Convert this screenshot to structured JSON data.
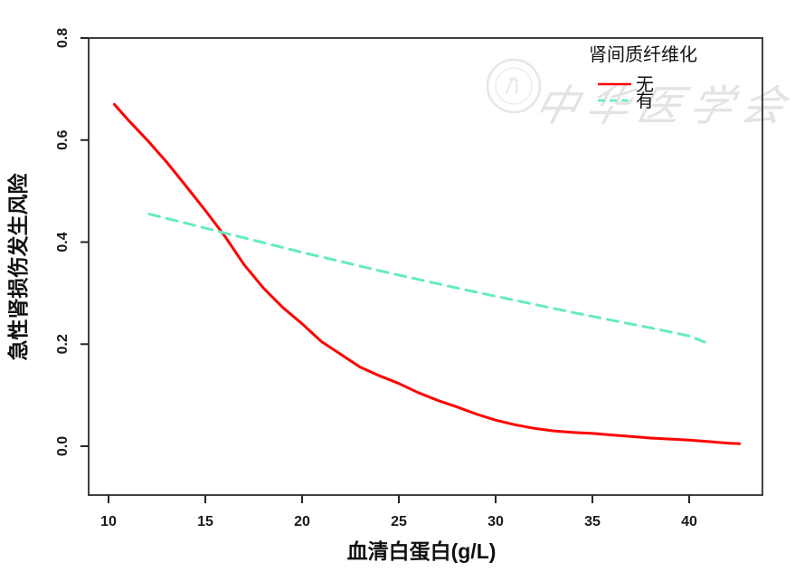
{
  "chart_data": {
    "type": "line",
    "title": "",
    "xlabel": "血清白蛋白(g/L)",
    "ylabel": "急性肾损伤发生风险",
    "xlim": [
      8.9,
      43.2
    ],
    "ylim": [
      -0.095,
      0.8
    ],
    "xticks": [
      "10",
      "15",
      "20",
      "25",
      "30",
      "35",
      "40"
    ],
    "yticks": [
      "0.0",
      "0.2",
      "0.4",
      "0.6",
      "0.8"
    ],
    "grid": false,
    "legend": {
      "title": "肾间质纤维化",
      "position": "top-right"
    },
    "series": [
      {
        "name": "无",
        "color": "#ff0000",
        "style": "solid",
        "points": [
          [
            10.3,
            0.67
          ],
          [
            11,
            0.64
          ],
          [
            12,
            0.6
          ],
          [
            13,
            0.557
          ],
          [
            14,
            0.51
          ],
          [
            15,
            0.462
          ],
          [
            16,
            0.412
          ],
          [
            17,
            0.356
          ],
          [
            18,
            0.31
          ],
          [
            19,
            0.272
          ],
          [
            20,
            0.24
          ],
          [
            21,
            0.205
          ],
          [
            22,
            0.18
          ],
          [
            23,
            0.155
          ],
          [
            24,
            0.138
          ],
          [
            25,
            0.123
          ],
          [
            26,
            0.105
          ],
          [
            27,
            0.09
          ],
          [
            28,
            0.077
          ],
          [
            29,
            0.063
          ],
          [
            30,
            0.051
          ],
          [
            31,
            0.042
          ],
          [
            32,
            0.035
          ],
          [
            33,
            0.03
          ],
          [
            34,
            0.027
          ],
          [
            35,
            0.025
          ],
          [
            36,
            0.022
          ],
          [
            37,
            0.019
          ],
          [
            38,
            0.016
          ],
          [
            39,
            0.014
          ],
          [
            40,
            0.012
          ],
          [
            41,
            0.009
          ],
          [
            42,
            0.006
          ],
          [
            42.6,
            0.005
          ]
        ]
      },
      {
        "name": "有",
        "color": "#66ebbe",
        "style": "dashed",
        "points": [
          [
            12.1,
            0.455
          ],
          [
            14,
            0.437
          ],
          [
            16,
            0.418
          ],
          [
            18,
            0.399
          ],
          [
            20,
            0.38
          ],
          [
            22,
            0.362
          ],
          [
            24,
            0.344
          ],
          [
            26,
            0.327
          ],
          [
            28,
            0.31
          ],
          [
            30,
            0.294
          ],
          [
            32,
            0.278
          ],
          [
            34,
            0.262
          ],
          [
            36,
            0.247
          ],
          [
            38,
            0.232
          ],
          [
            40,
            0.216
          ],
          [
            40.8,
            0.204
          ]
        ]
      }
    ]
  },
  "watermark": {
    "text": "中华医学会",
    "seal": "chinese-medical-association-seal",
    "color": "#e3e3e3"
  },
  "style": {
    "axis_color": "#303030",
    "tick_color": "#262626"
  }
}
